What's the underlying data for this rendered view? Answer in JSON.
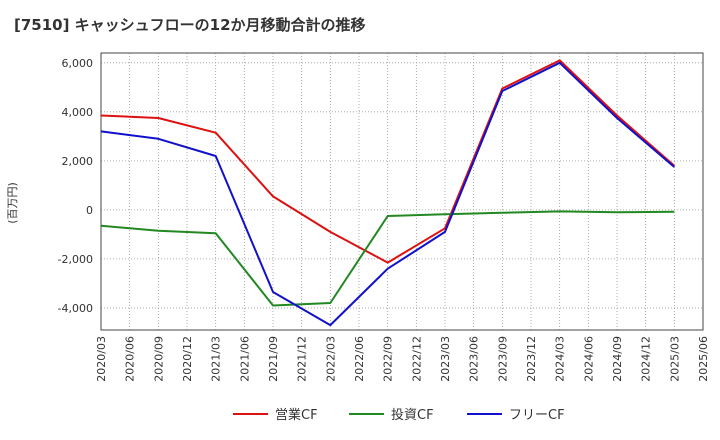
{
  "chart_data": {
    "type": "line",
    "title": "[7510]  キャッシュフローの12か月移動合計の推移",
    "ylabel": "(百万円)",
    "xlabel": "",
    "ylim": [
      -4900,
      6400
    ],
    "yticks": [
      -4000,
      -2000,
      0,
      2000,
      4000,
      6000
    ],
    "ytick_labels": [
      "-4,000",
      "-2,000",
      "0",
      "2,000",
      "4,000",
      "6,000"
    ],
    "x_tick_labels": [
      "2020/03",
      "2020/06",
      "2020/09",
      "2020/12",
      "2021/03",
      "2021/06",
      "2021/09",
      "2021/12",
      "2022/03",
      "2022/06",
      "2022/09",
      "2022/12",
      "2023/03",
      "2023/06",
      "2023/09",
      "2023/12",
      "2024/03",
      "2024/06",
      "2024/09",
      "2024/12",
      "2025/03",
      "2025/06"
    ],
    "grid": true,
    "legend_position": "bottom-center",
    "series": [
      {
        "name": "営業CF",
        "color": "#dd1111",
        "points": [
          {
            "x": "2020/03",
            "y": 3850
          },
          {
            "x": "2020/09",
            "y": 3750
          },
          {
            "x": "2021/03",
            "y": 3150
          },
          {
            "x": "2021/09",
            "y": 550
          },
          {
            "x": "2022/03",
            "y": -900
          },
          {
            "x": "2022/09",
            "y": -2150
          },
          {
            "x": "2023/03",
            "y": -750
          },
          {
            "x": "2023/09",
            "y": 4950
          },
          {
            "x": "2024/03",
            "y": 6100
          },
          {
            "x": "2024/09",
            "y": 3850
          },
          {
            "x": "2025/03",
            "y": 1800
          }
        ]
      },
      {
        "name": "投資CF",
        "color": "#228822",
        "points": [
          {
            "x": "2020/03",
            "y": -650
          },
          {
            "x": "2020/09",
            "y": -850
          },
          {
            "x": "2021/03",
            "y": -950
          },
          {
            "x": "2021/09",
            "y": -3900
          },
          {
            "x": "2022/03",
            "y": -3800
          },
          {
            "x": "2022/09",
            "y": -250
          },
          {
            "x": "2023/03",
            "y": -180
          },
          {
            "x": "2023/09",
            "y": -120
          },
          {
            "x": "2024/03",
            "y": -60
          },
          {
            "x": "2024/09",
            "y": -100
          },
          {
            "x": "2025/03",
            "y": -80
          }
        ]
      },
      {
        "name": "フリーCF",
        "color": "#1111cc",
        "points": [
          {
            "x": "2020/03",
            "y": 3200
          },
          {
            "x": "2020/09",
            "y": 2900
          },
          {
            "x": "2021/03",
            "y": 2200
          },
          {
            "x": "2021/09",
            "y": -3350
          },
          {
            "x": "2022/03",
            "y": -4700
          },
          {
            "x": "2022/09",
            "y": -2400
          },
          {
            "x": "2023/03",
            "y": -900
          },
          {
            "x": "2023/09",
            "y": 4850
          },
          {
            "x": "2024/03",
            "y": 6000
          },
          {
            "x": "2024/09",
            "y": 3750
          },
          {
            "x": "2025/03",
            "y": 1750
          }
        ]
      }
    ]
  }
}
